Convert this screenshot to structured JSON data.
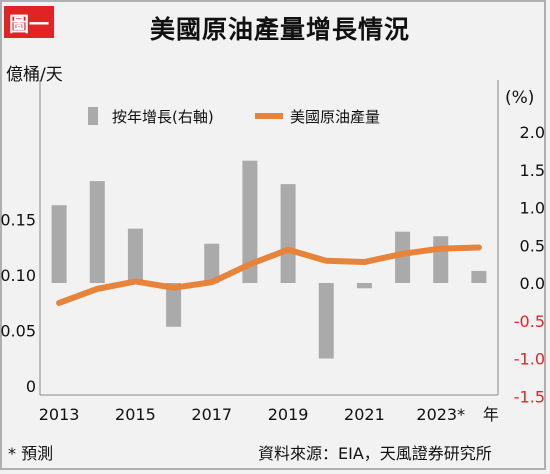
{
  "header": {
    "figure_tag": "圖一",
    "title": "美國原油產量增長情況"
  },
  "axes": {
    "left_unit": "億桶/天",
    "right_unit": "(%)",
    "year_suffix": "年"
  },
  "footer": {
    "note": "* 預測",
    "source": "資料來源：EIA，天風證券研究所"
  },
  "colors": {
    "bar": "#aaaaaa",
    "line": "#e8833a",
    "negative_tick": "#d62a2a",
    "background": "#f2f2f2",
    "figure_tag": "#e02426"
  },
  "chart_data": {
    "type": "bar+line",
    "title": "美國原油產量增長情況",
    "x": [
      "2013",
      "2014",
      "2015",
      "2016",
      "2017",
      "2018",
      "2019",
      "2020",
      "2021",
      "2022",
      "2023*",
      "2024*"
    ],
    "x_tick_labels": [
      "2013",
      "2015",
      "2017",
      "2019",
      "2021",
      "2023*"
    ],
    "series": [
      {
        "name": "按年增長(右軸)",
        "kind": "bar",
        "axis": "right",
        "values": [
          1.03,
          1.35,
          0.72,
          -0.58,
          0.52,
          1.62,
          1.31,
          -1.0,
          -0.07,
          0.68,
          0.62,
          0.16
        ]
      },
      {
        "name": "美國原油產量",
        "kind": "line",
        "axis": "left",
        "values": [
          0.0748,
          0.0875,
          0.0942,
          0.0885,
          0.0935,
          0.1097,
          0.1228,
          0.1128,
          0.1117,
          0.1191,
          0.1238,
          0.1248
        ]
      }
    ],
    "y_left": {
      "ticks": [
        "0",
        "0.05",
        "0.10",
        "0.15"
      ],
      "lim": [
        0,
        0.17
      ]
    },
    "y_right": {
      "ticks": [
        "2.0",
        "1.5",
        "1.0",
        "0.5",
        "0.0",
        "-0.5",
        "-1.0",
        "-1.5"
      ],
      "lim": [
        -1.5,
        2.0
      ]
    },
    "legend": {
      "placement": "top-left",
      "entries": [
        "按年增長(右軸)",
        "美國原油產量"
      ]
    }
  }
}
